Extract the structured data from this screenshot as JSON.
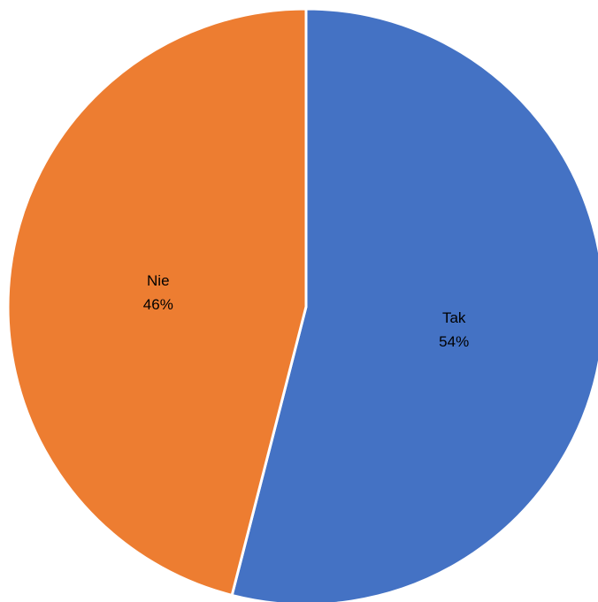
{
  "chart_data": {
    "type": "pie",
    "categories": [
      "Tak",
      "Nie"
    ],
    "values": [
      54,
      46
    ],
    "value_labels": [
      "54%",
      "46%"
    ],
    "colors": [
      "#4472C4",
      "#ED7D31"
    ],
    "start_angle": "top",
    "direction": "clockwise",
    "legend": "none",
    "title": ""
  }
}
